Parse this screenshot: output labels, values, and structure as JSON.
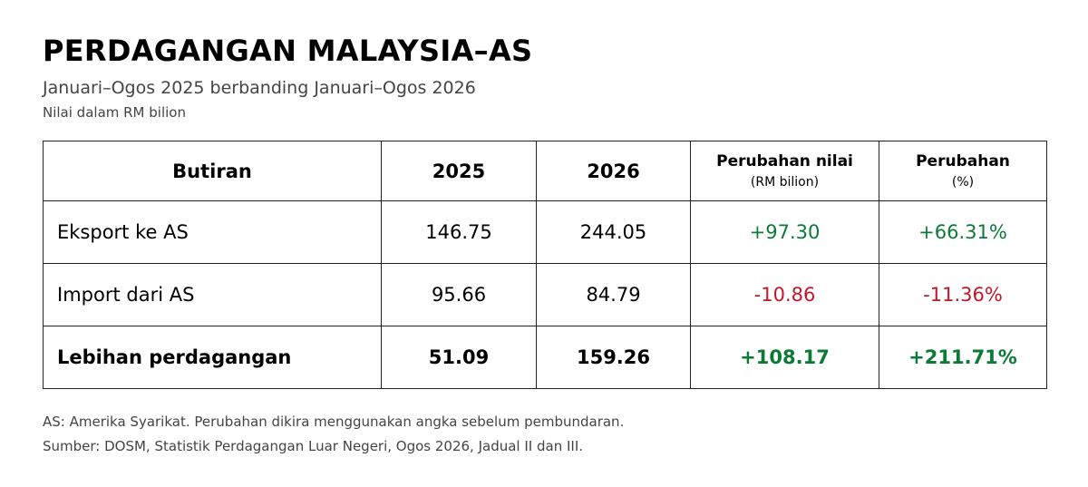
{
  "title": "PERDAGANGAN MALAYSIA–AS",
  "subtitle": "Januari–Ogos 2025 berbanding Januari–Ogos 2026",
  "unit_note": "Nilai dalam RM bilion",
  "table": {
    "headers": {
      "item": "Butiran",
      "y2025": "2025",
      "y2026": "2026",
      "change_value": "Perubahan nilai",
      "change_value_unit": "(RM bilion)",
      "change_pct": "Perubahan",
      "change_pct_unit": "(%)"
    },
    "rows": [
      {
        "label": "Eksport ke AS",
        "y2025": "146.75",
        "y2026": "244.05",
        "change_value": "+97.30",
        "change_pct": "+66.31%"
      },
      {
        "label": "Import dari AS",
        "y2025": "95.66",
        "y2026": "84.79",
        "change_value": "-10.86",
        "change_pct": "-11.36%"
      },
      {
        "label": "Lebihan perdagangan",
        "y2025": "51.09",
        "y2026": "159.26",
        "change_value": "+108.17",
        "change_pct": "+211.71%"
      }
    ]
  },
  "footnotes": {
    "note": "AS: Amerika Syarikat. Perubahan dikira menggunakan angka sebelum pembundaran.",
    "source": "Sumber: DOSM, Statistik Perdagangan Luar Negeri, Ogos 2026, Jadual II dan III."
  },
  "colors": {
    "positive": "#0b7a36",
    "negative": "#c0172a"
  }
}
